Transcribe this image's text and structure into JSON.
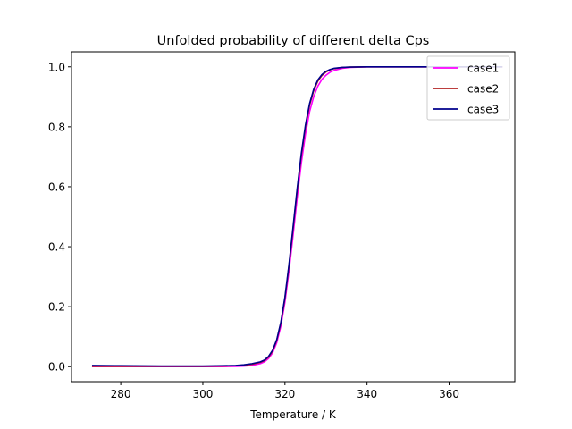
{
  "chart_data": {
    "type": "line",
    "title": "Unfolded probability of different delta Cps",
    "xlabel": "Temperature / K",
    "ylabel": "",
    "xlim": [
      268,
      376
    ],
    "ylim": [
      -0.05,
      1.05
    ],
    "xticks": [
      280,
      300,
      320,
      340,
      360
    ],
    "yticks": [
      0.0,
      0.2,
      0.4,
      0.6,
      0.8,
      1.0
    ],
    "xtick_labels": [
      "280",
      "300",
      "320",
      "340",
      "360"
    ],
    "ytick_labels": [
      "0.0",
      "0.2",
      "0.4",
      "0.6",
      "0.8",
      "1.0"
    ],
    "grid": false,
    "legend_position": "top-right",
    "x": [
      273,
      280,
      290,
      300,
      305,
      308,
      310,
      312,
      314,
      315,
      316,
      317,
      318,
      319,
      320,
      321,
      322,
      323,
      324,
      325,
      326,
      327,
      328,
      329,
      330,
      331,
      332,
      334,
      336,
      340,
      350,
      360,
      373
    ],
    "series": [
      {
        "name": "case1",
        "color": "#ff00ff",
        "values": [
          0.0,
          0.0,
          0.0,
          0.0,
          0.0,
          0.001,
          0.002,
          0.004,
          0.01,
          0.016,
          0.027,
          0.046,
          0.08,
          0.135,
          0.215,
          0.32,
          0.44,
          0.565,
          0.68,
          0.775,
          0.85,
          0.9,
          0.935,
          0.958,
          0.972,
          0.982,
          0.988,
          0.995,
          0.998,
          1.0,
          1.0,
          1.0,
          1.0
        ]
      },
      {
        "name": "case2",
        "color": "#b22222",
        "values": [
          0.001,
          0.001,
          0.001,
          0.001,
          0.002,
          0.003,
          0.005,
          0.008,
          0.014,
          0.02,
          0.032,
          0.052,
          0.088,
          0.145,
          0.228,
          0.338,
          0.462,
          0.59,
          0.705,
          0.8,
          0.872,
          0.92,
          0.952,
          0.971,
          0.983,
          0.99,
          0.994,
          0.998,
          0.999,
          1.0,
          1.0,
          1.0,
          1.0
        ]
      },
      {
        "name": "case3",
        "color": "#00008b",
        "values": [
          0.004,
          0.003,
          0.002,
          0.002,
          0.003,
          0.004,
          0.006,
          0.01,
          0.016,
          0.022,
          0.034,
          0.055,
          0.09,
          0.148,
          0.232,
          0.342,
          0.468,
          0.596,
          0.712,
          0.806,
          0.877,
          0.925,
          0.956,
          0.974,
          0.985,
          0.991,
          0.995,
          0.998,
          0.999,
          1.0,
          1.0,
          1.0,
          1.0
        ]
      }
    ]
  }
}
